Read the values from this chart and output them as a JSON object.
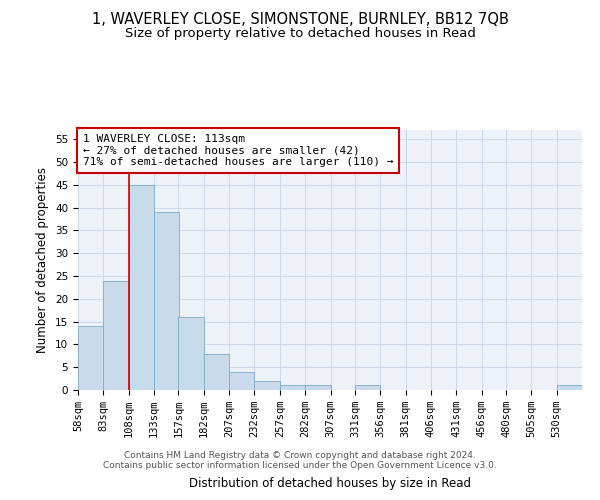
{
  "title": "1, WAVERLEY CLOSE, SIMONSTONE, BURNLEY, BB12 7QB",
  "subtitle": "Size of property relative to detached houses in Read",
  "xlabel": "Distribution of detached houses by size in Read",
  "ylabel": "Number of detached properties",
  "bar_color": "#c9daea",
  "bar_edge_color": "#7badc8",
  "grid_color": "#c8d4e3",
  "background_color": "#edf2f9",
  "annotation_box_color": "#cc0000",
  "annotation_line1": "1 WAVERLEY CLOSE: 113sqm",
  "annotation_line2": "← 27% of detached houses are smaller (42)",
  "annotation_line3": "71% of semi-detached houses are larger (110) →",
  "vline_x": 108,
  "vline_color": "#cc0000",
  "bins": [
    58,
    83,
    108,
    133,
    157,
    182,
    207,
    232,
    257,
    282,
    307,
    331,
    356,
    381,
    406,
    431,
    456,
    480,
    505,
    530,
    555
  ],
  "bar_heights": [
    14,
    24,
    45,
    39,
    16,
    8,
    4,
    2,
    1,
    1,
    0,
    1,
    0,
    0,
    0,
    0,
    0,
    0,
    0,
    1
  ],
  "ylim": [
    0,
    57
  ],
  "yticks": [
    0,
    5,
    10,
    15,
    20,
    25,
    30,
    35,
    40,
    45,
    50,
    55
  ],
  "footer_text": "Contains HM Land Registry data © Crown copyright and database right 2024.\nContains public sector information licensed under the Open Government Licence v3.0.",
  "title_fontsize": 10.5,
  "subtitle_fontsize": 9.5,
  "label_fontsize": 8.5,
  "tick_fontsize": 7.5,
  "annotation_fontsize": 8,
  "footer_fontsize": 6.5
}
